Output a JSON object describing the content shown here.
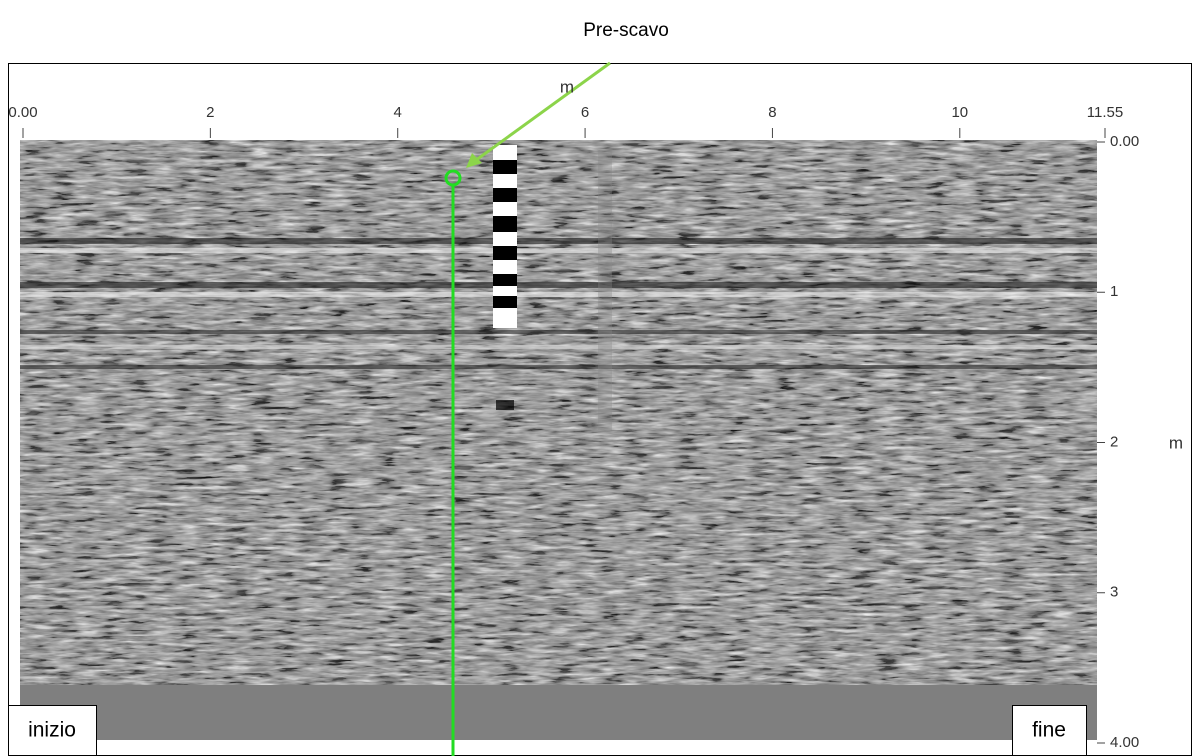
{
  "title": "Pre-scavo",
  "x_axis": {
    "label": "m",
    "range": [
      0,
      11.55
    ],
    "ticks": [
      {
        "value": 0,
        "label": "0.00"
      },
      2,
      4,
      6,
      8,
      10,
      {
        "value": 11.55,
        "label": "11.55"
      }
    ]
  },
  "y_axis": {
    "label": "m",
    "range": [
      0,
      4
    ],
    "ticks": [
      {
        "value": 0,
        "label": "0.00"
      },
      1,
      2,
      3,
      {
        "value": 4,
        "label": "4.00"
      }
    ]
  },
  "start_label": "inizio",
  "end_label": "fine"
}
